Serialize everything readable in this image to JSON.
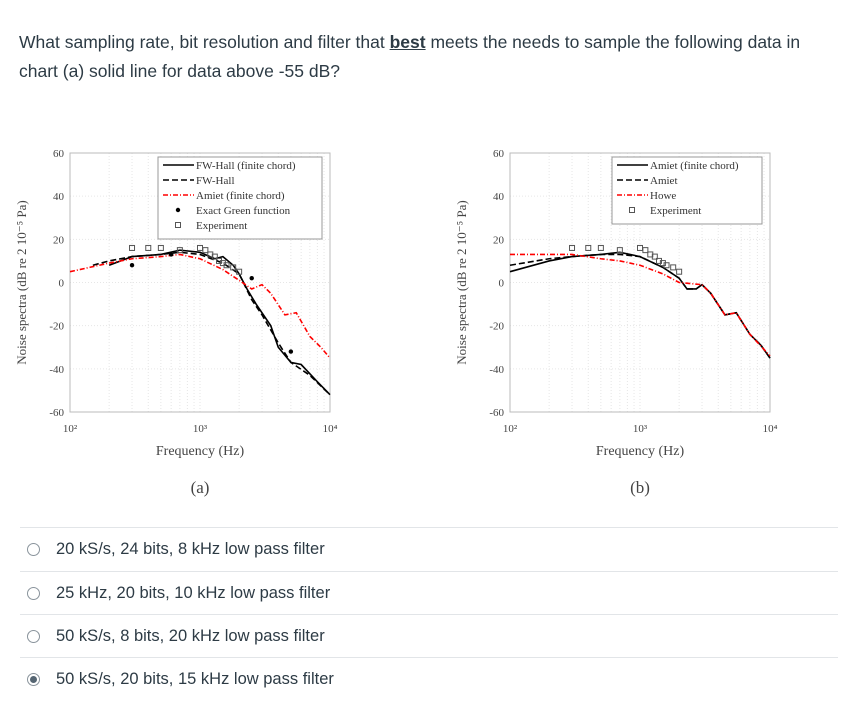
{
  "question": {
    "before": "What sampling rate, bit resolution and filter that ",
    "emph": "best",
    "after": " meets the needs to sample the following data in chart (a) solid line for data above -55 dB?"
  },
  "options": [
    {
      "label": "20 kS/s, 24 bits, 8 kHz low pass filter",
      "selected": false
    },
    {
      "label": "25 kHz, 20 bits, 10 kHz low pass filter",
      "selected": false
    },
    {
      "label": "50 kS/s, 8 bits, 20 kHz low pass filter",
      "selected": false
    },
    {
      "label": "50 kS/s, 20 bits, 15 kHz low pass filter",
      "selected": true
    }
  ],
  "chart_data": [
    {
      "type": "line",
      "caption": "(a)",
      "xlabel": "Frequency (Hz)",
      "ylabel": "Noise spectra (dB re 2 10⁻⁵ Pa)",
      "xscale": "log",
      "xlim": [
        100,
        10000
      ],
      "ylim": [
        -60,
        60
      ],
      "xticks": [
        "10²",
        "10³",
        "10⁴"
      ],
      "yticks": [
        "60",
        "40",
        "20",
        "0",
        "-20",
        "-40",
        "-60"
      ],
      "grid": true,
      "legend": "top-right",
      "series": [
        {
          "name": "FW-Hall (finite chord)",
          "style": "solid",
          "color": "#000000",
          "x": [
            200,
            300,
            500,
            700,
            1000,
            1300,
            1500,
            1800,
            2000,
            2300,
            2700,
            3500,
            4000,
            5000,
            6000,
            8000,
            10000
          ],
          "y": [
            8,
            12,
            13,
            15,
            14,
            11,
            12,
            8,
            4,
            -3,
            -10,
            -20,
            -30,
            -37,
            -38,
            -46,
            -52
          ]
        },
        {
          "name": "FW-Hall",
          "style": "dashed",
          "color": "#000000",
          "x": [
            150,
            200,
            300,
            500,
            700,
            1000,
            1500,
            2000,
            2500,
            3000,
            4000,
            5000,
            7000,
            10000
          ],
          "y": [
            8,
            10,
            12,
            13,
            14,
            13,
            9,
            4,
            -8,
            -15,
            -28,
            -37,
            -43,
            -52
          ]
        },
        {
          "name": "Amiet (finite chord)",
          "style": "dashdot",
          "color": "#ff0000",
          "x": [
            100,
            200,
            300,
            500,
            700,
            1000,
            1500,
            2000,
            2500,
            3000,
            3500,
            4500,
            5500,
            7000,
            8500,
            10000
          ],
          "y": [
            5,
            9,
            11,
            12,
            13,
            11,
            6,
            1,
            -3,
            -1,
            -5,
            -15,
            -14,
            -25,
            -30,
            -35
          ]
        },
        {
          "name": "Exact Green function",
          "style": "dot",
          "color": "#000000",
          "x": [
            300,
            600,
            2500,
            5000
          ],
          "y": [
            8,
            13,
            2,
            -32
          ]
        },
        {
          "name": "Experiment",
          "style": "square",
          "color": "#555555",
          "x": [
            300,
            400,
            500,
            700,
            1000,
            1100,
            1200,
            1300,
            1400,
            1500,
            1600,
            1800,
            2000
          ],
          "y": [
            16,
            16,
            16,
            15,
            16,
            15,
            13,
            12,
            10,
            9,
            8,
            7,
            5
          ]
        }
      ]
    },
    {
      "type": "line",
      "caption": "(b)",
      "xlabel": "Frequency (Hz)",
      "ylabel": "Noise spectra (dB re 2 10⁻⁵ Pa)",
      "xscale": "log",
      "xlim": [
        100,
        10000
      ],
      "ylim": [
        -60,
        60
      ],
      "xticks": [
        "10²",
        "10³",
        "10⁴"
      ],
      "yticks": [
        "60",
        "40",
        "20",
        "0",
        "-20",
        "-40",
        "-60"
      ],
      "grid": true,
      "legend": "top-right",
      "series": [
        {
          "name": "Amiet (finite chord)",
          "style": "solid",
          "color": "#000000",
          "x": [
            100,
            200,
            300,
            500,
            700,
            1000,
            1500,
            2000,
            2300,
            2700,
            3000,
            3500,
            4500,
            5500,
            7000,
            8500,
            10000
          ],
          "y": [
            5,
            10,
            12,
            13,
            14,
            12,
            7,
            2,
            -3,
            -3,
            -1,
            -5,
            -15,
            -14,
            -24,
            -29,
            -35
          ]
        },
        {
          "name": "Amiet",
          "style": "dashed",
          "color": "#000000",
          "x": [
            100,
            200,
            300,
            500,
            700,
            1000,
            1500,
            2000,
            2300,
            2700,
            3000,
            3500,
            4500,
            5500,
            7000,
            8500,
            10000
          ],
          "y": [
            8,
            11,
            12,
            13,
            13,
            12,
            7,
            2,
            -3,
            -3,
            -1,
            -5,
            -15,
            -14,
            -24,
            -29,
            -35
          ]
        },
        {
          "name": "Howe",
          "style": "dashdot",
          "color": "#ff0000",
          "x": [
            100,
            300,
            500,
            700,
            1000,
            1500,
            2000,
            3000,
            3500,
            4500,
            5500,
            7000,
            10000
          ],
          "y": [
            13,
            13,
            11,
            10,
            8,
            4,
            0,
            -1,
            -5,
            -15,
            -14,
            -24,
            -34
          ]
        },
        {
          "name": "Experiment",
          "style": "square",
          "color": "#555555",
          "x": [
            300,
            400,
            500,
            700,
            1000,
            1100,
            1200,
            1300,
            1400,
            1500,
            1600,
            1800,
            2000
          ],
          "y": [
            16,
            16,
            16,
            15,
            16,
            15,
            13,
            12,
            10,
            9,
            8,
            7,
            5
          ]
        }
      ]
    }
  ]
}
